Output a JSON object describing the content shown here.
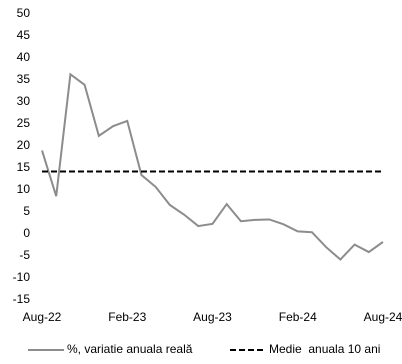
{
  "chart_data": {
    "type": "line",
    "categories": [
      "Aug-22",
      null,
      null,
      null,
      null,
      null,
      "Feb-23",
      null,
      null,
      null,
      null,
      null,
      "Aug-23",
      null,
      null,
      null,
      null,
      null,
      "Feb-24",
      null,
      null,
      null,
      null,
      null,
      "Aug-24"
    ],
    "series": [
      {
        "name": "%, variatie anuala reală",
        "color": "#8c8c8c",
        "line_style": "solid",
        "values": [
          19,
          8.6,
          36.3,
          33.9,
          22.3,
          24.5,
          25.7,
          13.4,
          10.7,
          6.6,
          4.4,
          1.8,
          2.3,
          6.8,
          2.9,
          3.2,
          3.3,
          2.2,
          0.6,
          0.4,
          -3,
          -5.8,
          -2.4,
          -4.1,
          -1.8
        ]
      },
      {
        "name": "Medie  anuala 10 ani",
        "color": "#000000",
        "line_style": "dashed",
        "values": [
          14.2,
          14.2,
          14.2,
          14.2,
          14.2,
          14.2,
          14.2,
          14.2,
          14.2,
          14.2,
          14.2,
          14.2,
          14.2,
          14.2,
          14.2,
          14.2,
          14.2,
          14.2,
          14.2,
          14.2,
          14.2,
          14.2,
          14.2,
          14.2,
          14.2
        ]
      }
    ],
    "ylim": [
      -15,
      50
    ],
    "yticks": [
      -15,
      -10,
      -5,
      0,
      5,
      10,
      15,
      20,
      25,
      30,
      35,
      40,
      45,
      50
    ],
    "grid": false,
    "legend": "bottom"
  }
}
